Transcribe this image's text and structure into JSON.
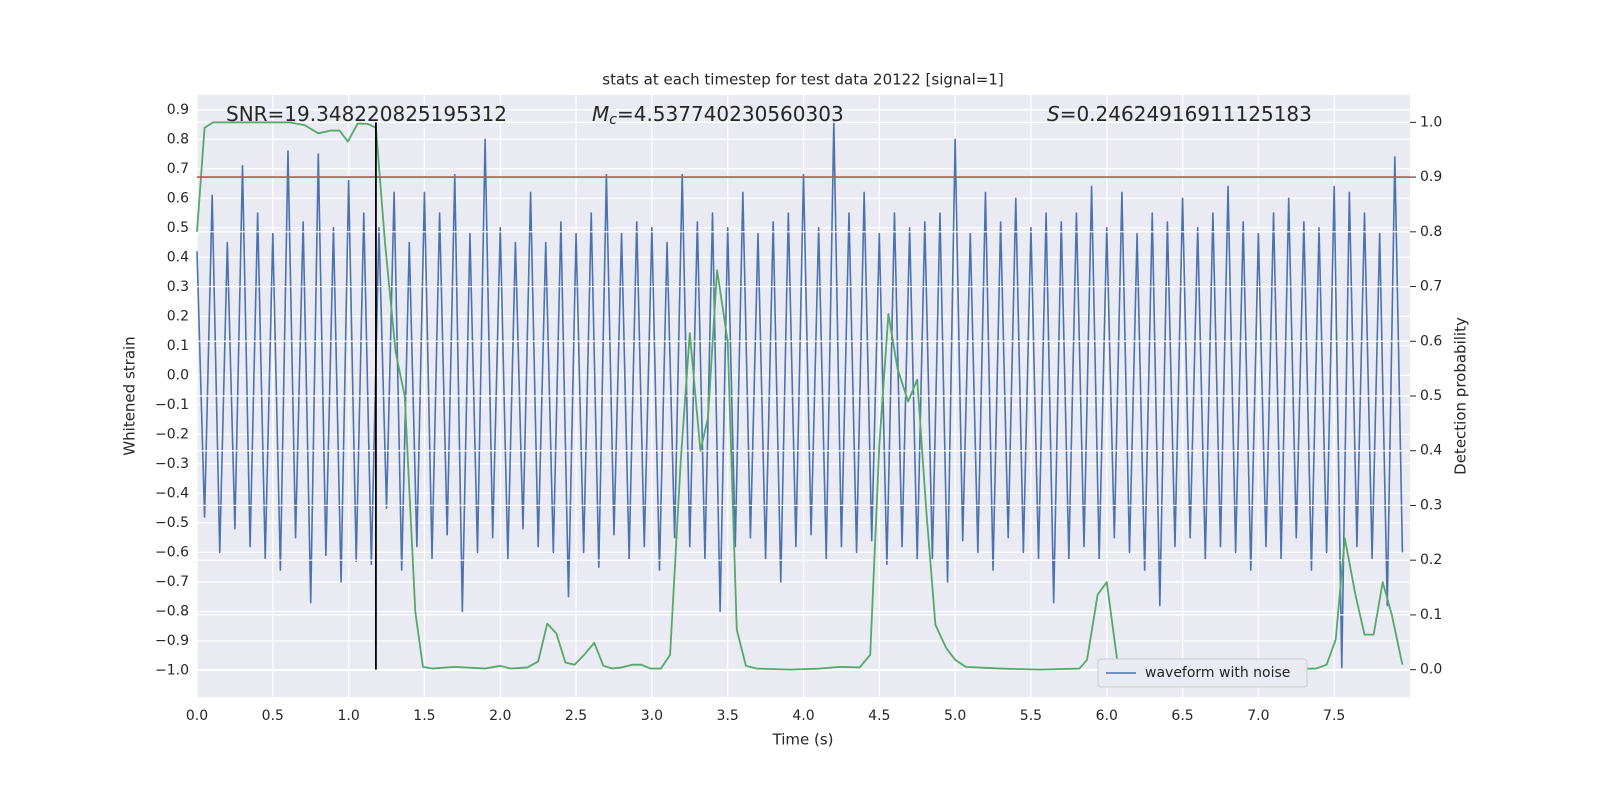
{
  "chart_data": {
    "type": "line",
    "title": "stats at each timestep for test data 20122 [signal=1]",
    "x_label": "Time (s)",
    "y_label": "Whitened strain",
    "y2_label": "Detection probability",
    "annotations": [
      {
        "text": "SNR=19.348220825195312"
      },
      {
        "symbol": "M",
        "subscript": "c",
        "text": "=4.537740230560303"
      },
      {
        "symbol": "S",
        "text": "=0.24624916911125183"
      }
    ],
    "xlim": [
      0,
      8
    ],
    "ylim": [
      -1.09,
      0.95
    ],
    "y2lim": [
      -0.05,
      1.05
    ],
    "xticks": [
      {
        "value": 0,
        "label": "0.0"
      },
      0.5,
      {
        "value": 1,
        "label": "1.0"
      },
      1.5,
      {
        "value": 2,
        "label": "2.0"
      },
      2.5,
      {
        "value": 3,
        "label": "3.0"
      },
      3.5,
      {
        "value": 4,
        "label": "4.0"
      },
      4.5,
      {
        "value": 5,
        "label": "5.0"
      },
      5.5,
      {
        "value": 6,
        "label": "6.0"
      },
      6.5,
      {
        "value": 7,
        "label": "7.0"
      },
      7.5
    ],
    "yticks": [
      {
        "value": -1,
        "label": "−1.0"
      },
      {
        "value": -0.9,
        "label": "−0.9"
      },
      {
        "value": -0.8,
        "label": "−0.8"
      },
      {
        "value": -0.7,
        "label": "−0.7"
      },
      {
        "value": -0.6,
        "label": "−0.6"
      },
      {
        "value": -0.5,
        "label": "−0.5"
      },
      {
        "value": -0.4,
        "label": "−0.4"
      },
      {
        "value": -0.3,
        "label": "−0.3"
      },
      {
        "value": -0.2,
        "label": "−0.2"
      },
      {
        "value": -0.1,
        "label": "−0.1"
      },
      {
        "value": 0,
        "label": "0.0"
      },
      0.1,
      0.2,
      0.3,
      0.4,
      0.5,
      0.6,
      0.7,
      0.8,
      0.9
    ],
    "y2ticks": [
      {
        "value": 0,
        "label": "0.0"
      },
      0.1,
      0.2,
      0.3,
      0.4,
      0.5,
      0.6,
      0.7,
      0.8,
      0.9,
      {
        "value": 1,
        "label": "1.0"
      }
    ],
    "grid": true,
    "legend": "lower right",
    "series": [
      {
        "name": "waveform with noise",
        "color": "#4c72b0",
        "x": [
          0,
          0.05,
          0.1,
          0.15,
          0.2,
          0.25,
          0.3,
          0.35,
          0.4,
          0.45,
          0.5,
          0.55,
          0.6,
          0.65,
          0.7,
          0.75,
          0.8,
          0.85,
          0.9,
          0.95,
          1,
          1.05,
          1.1,
          1.15,
          1.2,
          1.25,
          1.3,
          1.35,
          1.4,
          1.45,
          1.5,
          1.55,
          1.6,
          1.65,
          1.7,
          1.75,
          1.8,
          1.85,
          1.9,
          1.95,
          2,
          2.05,
          2.1,
          2.15,
          2.2,
          2.25,
          2.3,
          2.35,
          2.4,
          2.45,
          2.5,
          2.55,
          2.6,
          2.65,
          2.7,
          2.75,
          2.8,
          2.85,
          2.9,
          2.95,
          3,
          3.05,
          3.1,
          3.15,
          3.2,
          3.25,
          3.3,
          3.35,
          3.4,
          3.45,
          3.5,
          3.55,
          3.6,
          3.65,
          3.7,
          3.75,
          3.8,
          3.85,
          3.9,
          3.95,
          4,
          4.05,
          4.1,
          4.15,
          4.2,
          4.25,
          4.3,
          4.35,
          4.4,
          4.45,
          4.5,
          4.55,
          4.6,
          4.65,
          4.7,
          4.75,
          4.8,
          4.85,
          4.9,
          4.95,
          5,
          5.05,
          5.1,
          5.15,
          5.2,
          5.25,
          5.3,
          5.35,
          5.4,
          5.45,
          5.5,
          5.55,
          5.6,
          5.65,
          5.7,
          5.75,
          5.8,
          5.85,
          5.9,
          5.95,
          6,
          6.05,
          6.1,
          6.15,
          6.2,
          6.25,
          6.3,
          6.35,
          6.4,
          6.45,
          6.5,
          6.55,
          6.6,
          6.65,
          6.7,
          6.75,
          6.8,
          6.85,
          6.9,
          6.95,
          7,
          7.05,
          7.1,
          7.15,
          7.2,
          7.25,
          7.3,
          7.35,
          7.4,
          7.45,
          7.5,
          7.55,
          7.6,
          7.65,
          7.7,
          7.75,
          7.8,
          7.85,
          7.9,
          7.95
        ],
        "values": [
          0.42,
          -0.48,
          0.61,
          -0.6,
          0.45,
          -0.52,
          0.71,
          -0.58,
          0.55,
          -0.62,
          0.48,
          -0.66,
          0.76,
          -0.55,
          0.52,
          -0.77,
          0.75,
          -0.61,
          0.5,
          -0.7,
          0.66,
          -0.63,
          0.55,
          -0.64,
          0.5,
          -0.45,
          0.62,
          -0.66,
          0.45,
          -0.58,
          0.62,
          -0.62,
          0.55,
          -0.54,
          0.68,
          -0.8,
          0.48,
          -0.6,
          0.8,
          -0.55,
          0.5,
          -0.62,
          0.45,
          -0.52,
          0.62,
          -0.58,
          0.45,
          -0.6,
          0.52,
          -0.75,
          0.48,
          -0.6,
          0.55,
          -0.65,
          0.68,
          -0.54,
          0.48,
          -0.62,
          0.52,
          -0.58,
          0.5,
          -0.66,
          0.45,
          -0.55,
          0.68,
          -0.58,
          0.52,
          -0.62,
          0.55,
          -0.8,
          0.5,
          -0.58,
          0.62,
          -0.55,
          0.48,
          -0.62,
          0.52,
          -0.7,
          0.55,
          -0.58,
          0.68,
          -0.54,
          0.5,
          -0.62,
          0.86,
          -0.58,
          0.55,
          -0.6,
          0.62,
          -0.56,
          0.48,
          -0.64,
          0.55,
          -0.58,
          0.5,
          -0.62,
          0.52,
          -0.62,
          0.55,
          -0.7,
          0.8,
          -0.56,
          0.48,
          -0.6,
          0.62,
          -0.66,
          0.52,
          -0.55,
          0.6,
          -0.6,
          0.5,
          -0.62,
          0.55,
          -0.77,
          0.52,
          -0.62,
          0.55,
          -0.58,
          0.64,
          -0.62,
          0.5,
          -0.55,
          0.62,
          -0.6,
          0.48,
          -0.66,
          0.55,
          -0.78,
          0.52,
          -0.58,
          0.6,
          -0.55,
          0.5,
          -0.62,
          0.55,
          -0.58,
          0.64,
          -0.6,
          0.52,
          -0.66,
          0.48,
          -0.58,
          0.55,
          -0.62,
          0.6,
          -0.55,
          0.52,
          -0.66,
          0.5,
          -0.6,
          0.64,
          -0.99,
          0.62,
          -0.58,
          0.55,
          -0.62,
          0.48,
          -0.78,
          0.74,
          -0.6
        ]
      },
      {
        "color": "#55a868",
        "axis": "y2",
        "x": [
          0,
          0.05,
          0.105,
          0.61,
          0.71,
          0.8,
          0.88,
          0.94,
          0.995,
          1.06,
          1.13,
          1.18,
          1.24,
          1.31,
          1.37,
          1.44,
          1.49,
          1.55,
          1.7,
          1.9,
          2,
          2.07,
          2.18,
          2.25,
          2.31,
          2.37,
          2.43,
          2.49,
          2.55,
          2.62,
          2.68,
          2.74,
          2.8,
          2.87,
          2.93,
          2.99,
          3.06,
          3.12,
          3.19,
          3.25,
          3.32,
          3.37,
          3.43,
          3.5,
          3.56,
          3.62,
          3.69,
          3.91,
          4.11,
          4.24,
          4.37,
          4.44,
          4.5,
          4.56,
          4.62,
          4.69,
          4.75,
          4.81,
          4.87,
          4.94,
          5,
          5.07,
          5.3,
          5.56,
          5.82,
          5.87,
          5.94,
          6,
          6.07,
          6.13,
          6.22,
          6.32,
          6.88,
          7.01,
          7.38,
          7.45,
          7.51,
          7.57,
          7.64,
          7.7,
          7.76,
          7.82,
          7.88,
          7.95
        ],
        "values": [
          0.8,
          0.99,
          1,
          1,
          0.995,
          0.98,
          0.985,
          0.985,
          0.965,
          0.998,
          0.997,
          0.99,
          0.78,
          0.58,
          0.5,
          0.105,
          0.005,
          0.002,
          0.005,
          0.002,
          0.007,
          0.002,
          0.004,
          0.015,
          0.084,
          0.066,
          0.013,
          0.009,
          0.026,
          0.049,
          0.007,
          0.002,
          0.004,
          0.009,
          0.009,
          0.002,
          0.002,
          0.027,
          0.38,
          0.615,
          0.4,
          0.46,
          0.73,
          0.6,
          0.073,
          0.007,
          0.002,
          0,
          0.002,
          0.005,
          0.004,
          0.027,
          0.41,
          0.65,
          0.55,
          0.49,
          0.53,
          0.29,
          0.082,
          0.04,
          0.018,
          0.005,
          0.002,
          0,
          0.002,
          0.018,
          0.137,
          0.16,
          0.015,
          0.005,
          0.005,
          0,
          0.002,
          0,
          0.002,
          0.009,
          0.055,
          0.24,
          0.137,
          0.064,
          0.064,
          0.16,
          0.1,
          0.009
        ]
      }
    ],
    "hline": {
      "y2": 0.9,
      "color": "#c44e52"
    },
    "vline": {
      "x": 1.18,
      "y2": [
        0,
        1
      ],
      "color": "#000000"
    }
  }
}
